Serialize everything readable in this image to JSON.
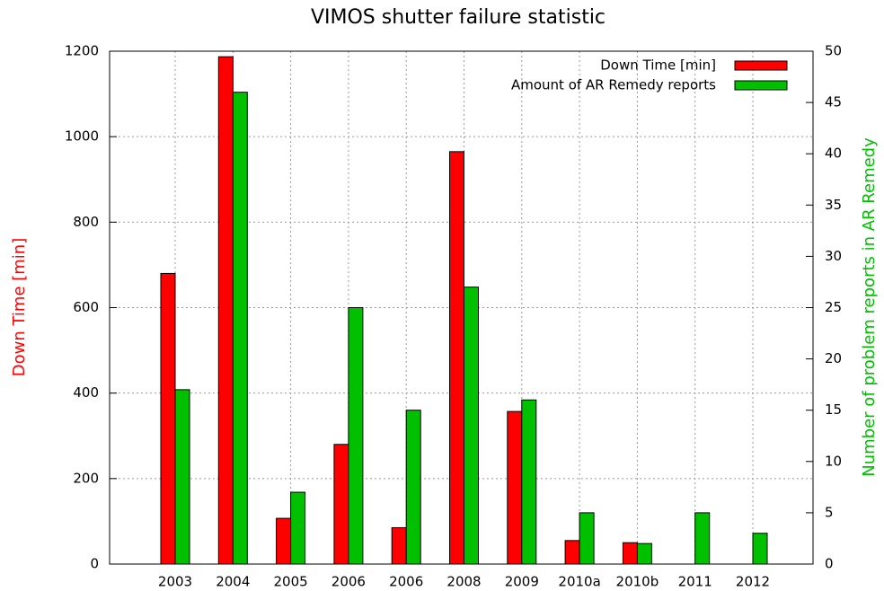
{
  "chart_data": {
    "type": "bar",
    "title": "VIMOS shutter failure statistic",
    "y_label": "Down Time [min]",
    "y2_label": "Number of problem reports in AR Remedy",
    "categories": [
      "2003",
      "2004",
      "2005",
      "2006",
      "2006",
      "2008",
      "2009",
      "2010a",
      "2010b",
      "2011",
      "2012"
    ],
    "series": [
      {
        "name": "Down Time [min]",
        "color": "#ff0000",
        "values": [
          680,
          1187,
          107,
          280,
          85,
          965,
          357,
          55,
          50,
          null,
          null
        ]
      },
      {
        "name": "Amount of AR Remedy reports",
        "color": "#00c000",
        "axis": "y2",
        "values": [
          17,
          46,
          7,
          25,
          15,
          27,
          16,
          5,
          2,
          5,
          3
        ]
      }
    ],
    "ylim": [
      0,
      1200
    ],
    "yticks": [
      0,
      200,
      400,
      600,
      800,
      1000,
      1200
    ],
    "y2lim": [
      0,
      50
    ],
    "y2ticks": [
      0,
      5,
      10,
      15,
      20,
      25,
      30,
      35,
      40,
      45,
      50
    ],
    "grid": true,
    "legend": "top-right"
  }
}
